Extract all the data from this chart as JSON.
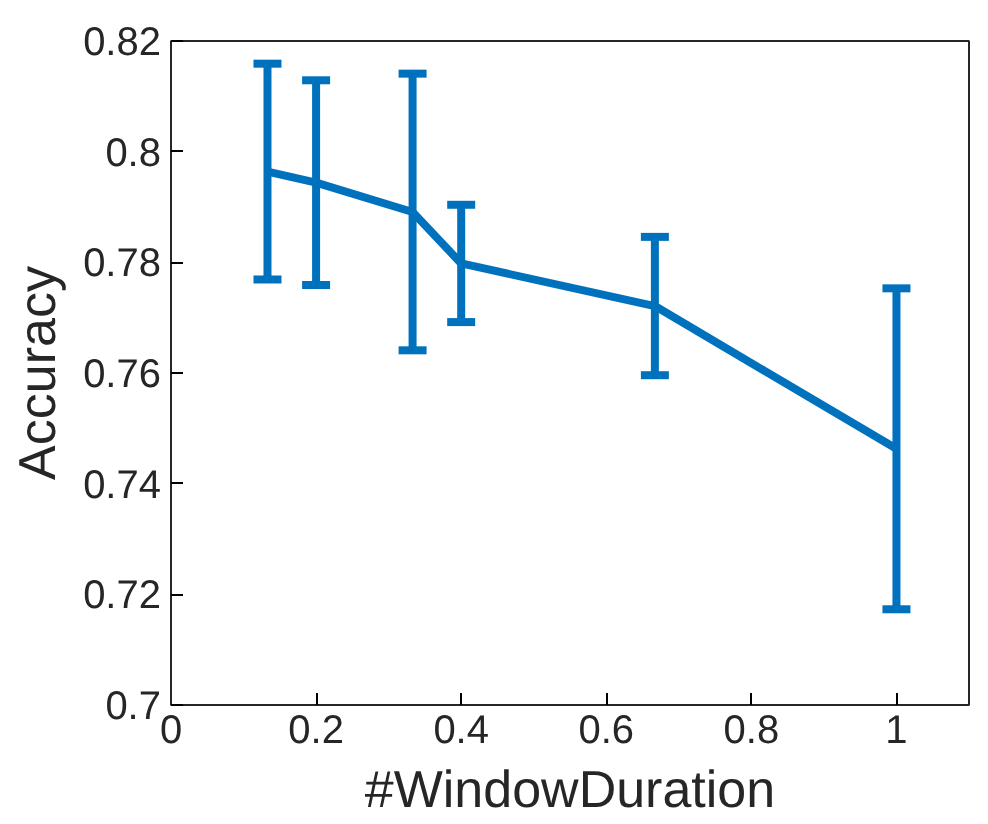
{
  "chart_data": {
    "type": "line",
    "xlabel": "#WindowDuration",
    "ylabel": "Accuracy",
    "x": [
      0.133,
      0.2,
      0.333,
      0.4,
      0.667,
      1
    ],
    "series": [
      {
        "color": "#0072bd",
        "values": [
          0.7964,
          0.7944,
          0.7891,
          0.7798,
          0.7721,
          0.7463
        ],
        "errors": [
          0.0195,
          0.0185,
          0.025,
          0.0106,
          0.0125,
          0.029
        ]
      }
    ],
    "xlim": [
      0,
      1.1
    ],
    "ylim": [
      0.7,
      0.82
    ],
    "xticks": [
      0,
      0.2,
      0.4,
      0.6,
      0.8,
      1
    ],
    "yticks": [
      0.7,
      0.72,
      0.74,
      0.76,
      0.78,
      0.8,
      0.82
    ],
    "grid": false,
    "marker": "none",
    "line_style": "solid"
  }
}
